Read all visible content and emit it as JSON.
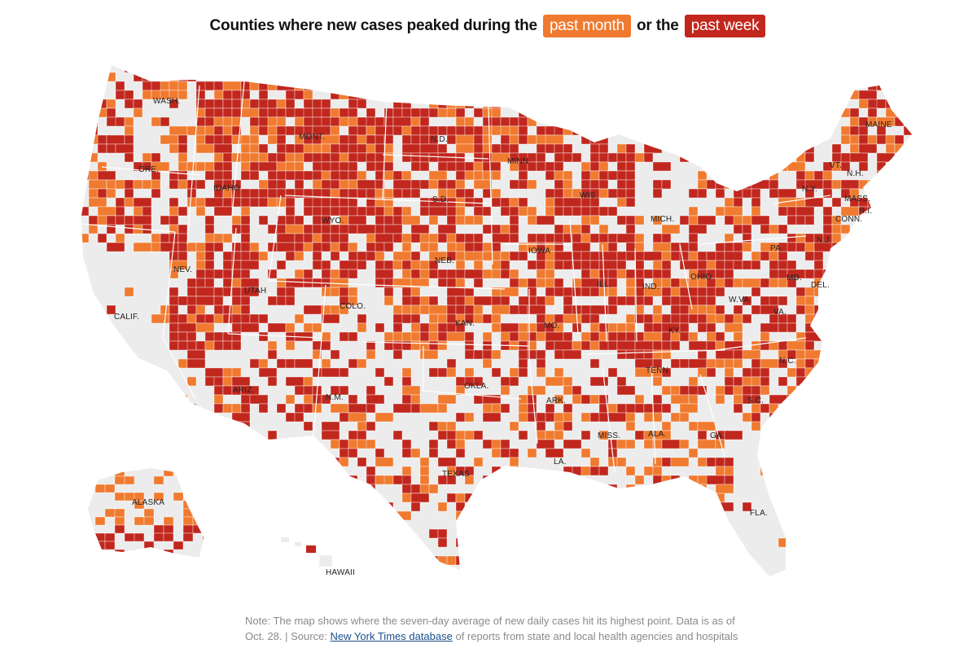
{
  "title": {
    "prefix": "Counties where new cases peaked during the",
    "month_label": "past month",
    "middle": "or the",
    "week_label": "past week"
  },
  "colors": {
    "past_month": "#f07a2f",
    "past_week": "#c1271d",
    "no_peak": "#ececec",
    "border": "#ffffff"
  },
  "map": {
    "region": "United States (counties)",
    "labels": [
      "WASH.",
      "MONT.",
      "N.D.",
      "MAINE",
      "ORE.",
      "IDAHO",
      "MINN.",
      "VT.",
      "N.H.",
      "N.Y.",
      "MASS.",
      "WYO.",
      "S.D.",
      "WIS.",
      "R.I.",
      "CONN.",
      "MICH.",
      "N.J.",
      "NEB.",
      "IOWA",
      "PA.",
      "NEV.",
      "UTAH",
      "ILL.",
      "IND.",
      "OHIO",
      "MD.",
      "DEL.",
      "CALIF.",
      "COLO.",
      "W.VA.",
      "KAN.",
      "MO.",
      "VA.",
      "KY.",
      "N.C.",
      "TENN.",
      "OKLA.",
      "ARIZ.",
      "N.M.",
      "ARK.",
      "S.C.",
      "MISS.",
      "ALA.",
      "GA.",
      "LA.",
      "TEXAS",
      "ALASKA",
      "FLA.",
      "HAWAII"
    ]
  },
  "note": {
    "text1": "Note: The map shows where the seven-day average of new daily cases hit its highest point. Data is as of Oct. 28. | Source:",
    "link": "New York Times database",
    "text2": "of reports from state and local health agencies and hospitals"
  }
}
